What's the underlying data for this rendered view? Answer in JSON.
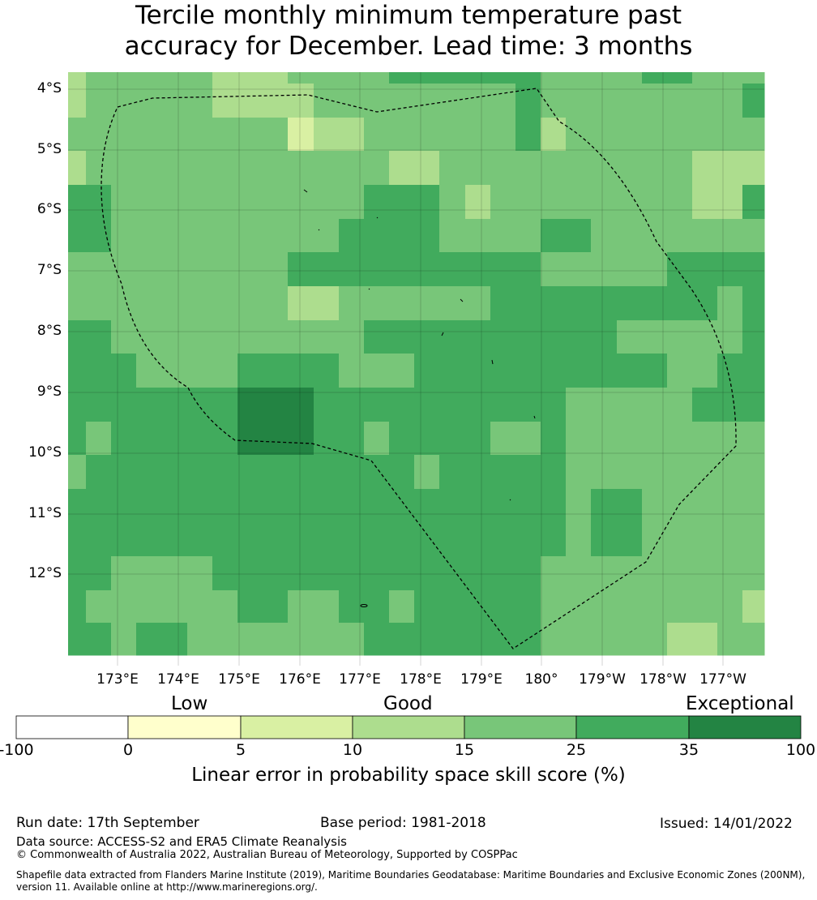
{
  "title": {
    "line1": "Tercile monthly minimum temperature past",
    "line2": "accuracy for December. Lead time: 3 months"
  },
  "map": {
    "lat_labels": [
      "4°S",
      "5°S",
      "6°S",
      "7°S",
      "8°S",
      "9°S",
      "10°S",
      "11°S",
      "12°S"
    ],
    "lon_labels": [
      "173°E",
      "174°E",
      "175°E",
      "176°E",
      "177°E",
      "178°E",
      "179°E",
      "180°",
      "179°W",
      "178°W",
      "177°W"
    ],
    "bin_colors": [
      "#ffffff",
      "#ffffcc",
      "#d9f0a3",
      "#addd8e",
      "#78c679",
      "#41ab5d",
      "#238443"
    ],
    "grid": [
      "3444443334444555555444455444",
      "3444443333444444445444444445",
      "4444444442334444445344444444",
      "3444444444444334444444444333",
      "5544444444445554344444444335",
      "5544444444455554444554444444",
      "4444444445555555555444445555",
      "4444444443344444455555555545",
      "5544444444445555555555444445",
      "5554444555544455555555554455",
      "5555555666555555555544444555",
      "5455555666554555544544444444",
      "4555555555555545555544444444",
      "5555555555555555555545544444",
      "5555555555555555555545544444",
      "5544445555555555555444444444",
      "5444444554455455555444444443",
      "5545544444445555555444443344"
    ]
  },
  "colorbar": {
    "categories": [
      "Low",
      "Good",
      "Exceptional"
    ],
    "ticks": [
      "-100",
      "0",
      "5",
      "10",
      "15",
      "25",
      "35",
      "100"
    ],
    "colors": [
      "#ffffff",
      "#ffffcc",
      "#d9f0a3",
      "#addd8e",
      "#78c679",
      "#41ab5d",
      "#238443"
    ],
    "label": "Linear error in probability space skill score (%)"
  },
  "footer": {
    "run_date": "Run date: 17th September",
    "base_period": "Base period: 1981-2018",
    "issued": "Issued: 14/01/2022",
    "data_source": "Data source: ACCESS-S2 and ERA5 Climate Reanalysis",
    "copyright": "© Commonwealth of Australia 2022, Australian Bureau of Meteorology, Supported by COSPPac",
    "shapefile_line1": "Shapefile data extracted from Flanders Marine Institute (2019), Maritime Boundaries Geodatabase: Maritime Boundaries and Exclusive Economic Zones (200NM),",
    "shapefile_line2": "version 11. Available online at http://www.marineregions.org/."
  }
}
